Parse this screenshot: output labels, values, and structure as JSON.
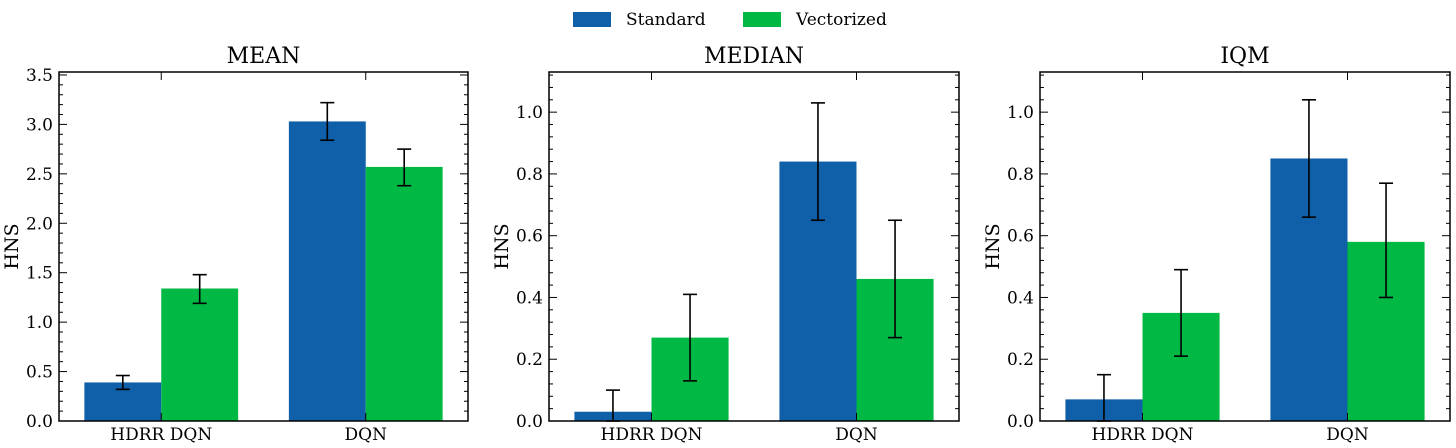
{
  "legend": {
    "placement": "top-center",
    "entries": [
      {
        "name": "Standard",
        "color": "#0f5fa9"
      },
      {
        "name": "Vectorized",
        "color": "#00b844"
      }
    ]
  },
  "chart_data": [
    {
      "type": "bar",
      "title": "MEAN",
      "ylabel": "HNS",
      "xlabel": "",
      "categories": [
        "HDRR DQN",
        "DQN"
      ],
      "ylim": [
        0,
        3.53
      ],
      "yticks": [
        "0.0",
        "0.5",
        "1.0",
        "1.5",
        "2.0",
        "2.5",
        "3.0",
        "3.5"
      ],
      "series": [
        {
          "name": "Standard",
          "values": [
            0.39,
            3.03
          ],
          "err_low": [
            0.32,
            2.84
          ],
          "err_high": [
            0.46,
            3.22
          ]
        },
        {
          "name": "Vectorized",
          "values": [
            1.34,
            2.57
          ],
          "err_low": [
            1.19,
            2.38
          ],
          "err_high": [
            1.48,
            2.75
          ]
        }
      ]
    },
    {
      "type": "bar",
      "title": "MEDIAN",
      "ylabel": "HNS",
      "xlabel": "",
      "categories": [
        "HDRR DQN",
        "DQN"
      ],
      "ylim": [
        0,
        1.13
      ],
      "yticks": [
        "0.0",
        "0.2",
        "0.4",
        "0.6",
        "0.8",
        "1.0"
      ],
      "series": [
        {
          "name": "Standard",
          "values": [
            0.03,
            0.84
          ],
          "err_low": [
            0.0,
            0.65
          ],
          "err_high": [
            0.1,
            1.03
          ]
        },
        {
          "name": "Vectorized",
          "values": [
            0.27,
            0.46
          ],
          "err_low": [
            0.13,
            0.27
          ],
          "err_high": [
            0.41,
            0.65
          ]
        }
      ]
    },
    {
      "type": "bar",
      "title": "IQM",
      "ylabel": "HNS",
      "xlabel": "",
      "categories": [
        "HDRR DQN",
        "DQN"
      ],
      "ylim": [
        0,
        1.13
      ],
      "yticks": [
        "0.0",
        "0.2",
        "0.4",
        "0.6",
        "0.8",
        "1.0"
      ],
      "series": [
        {
          "name": "Standard",
          "values": [
            0.07,
            0.85
          ],
          "err_low": [
            0.0,
            0.66
          ],
          "err_high": [
            0.15,
            1.04
          ]
        },
        {
          "name": "Vectorized",
          "values": [
            0.35,
            0.58
          ],
          "err_low": [
            0.21,
            0.4
          ],
          "err_high": [
            0.49,
            0.77
          ]
        }
      ]
    }
  ]
}
